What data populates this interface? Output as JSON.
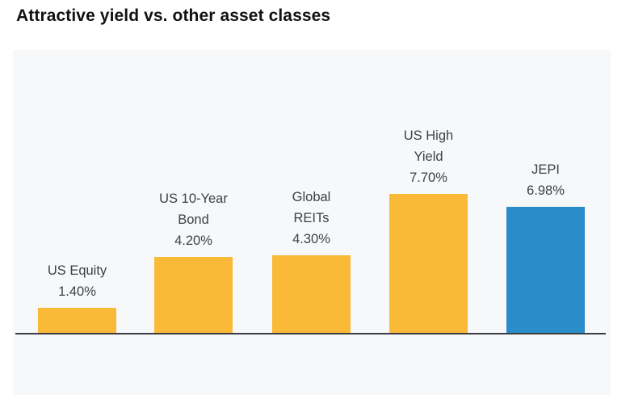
{
  "chart_data": {
    "type": "bar",
    "title": "Attractive yield vs. other asset classes",
    "categories": [
      "US Equity",
      "US 10-Year Bond",
      "Global REITs",
      "US High Yield",
      "JEPI"
    ],
    "label_display": [
      "US Equity",
      "US 10-Year\nBond",
      "Global\nREITs",
      "US High\nYield",
      "JEPI"
    ],
    "values": [
      1.4,
      4.2,
      4.3,
      7.7,
      6.98
    ],
    "value_labels": [
      "1.40%",
      "4.20%",
      "4.30%",
      "7.70%",
      "6.98%"
    ],
    "bar_colors": [
      "#fbb938",
      "#fbb938",
      "#fbb938",
      "#fbb938",
      "#2a8cc9"
    ],
    "highlight_index": 4,
    "ylabel": "",
    "xlabel": "",
    "ylim": [
      0,
      8.5
    ],
    "grid": false,
    "legend": false,
    "colors": {
      "bar_default": "#fbb938",
      "bar_highlight": "#2a8cc9",
      "panel_background": "#f7f8f9",
      "axis_line": "#3a3d42",
      "title_text": "#121212",
      "label_text": "#3e4043"
    }
  }
}
